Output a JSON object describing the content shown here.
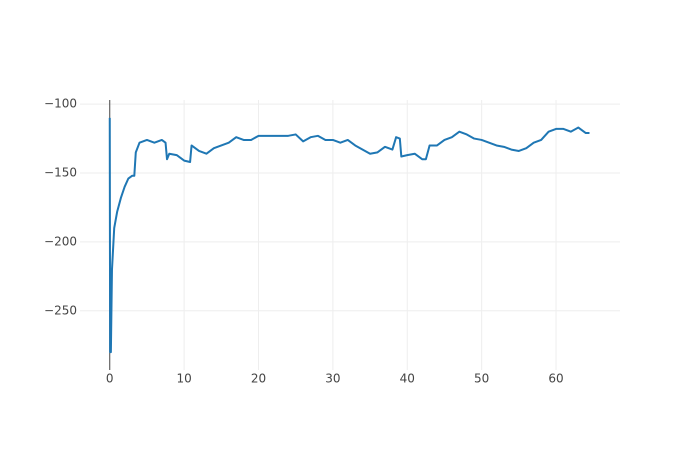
{
  "chart_data": {
    "type": "line",
    "x": [
      0,
      0.05,
      0.15,
      0.3,
      0.6,
      1,
      1.5,
      2,
      2.5,
      3,
      3.3,
      3.5,
      4,
      5,
      6,
      7,
      7.5,
      7.7,
      8,
      9,
      10,
      10.8,
      11,
      12,
      13,
      14,
      15,
      16,
      17,
      18,
      19,
      20,
      22,
      24,
      25,
      26,
      27,
      28,
      29,
      30,
      31,
      32,
      33,
      34,
      35,
      36,
      37,
      38,
      38.5,
      39,
      39.2,
      40,
      41,
      42,
      42.5,
      43,
      44,
      45,
      46,
      47,
      48,
      49,
      50,
      51,
      52,
      53,
      54,
      55,
      56,
      57,
      58,
      59,
      60,
      61,
      62,
      63,
      64,
      64.5
    ],
    "series": [
      {
        "color": "#1f77b4",
        "values": [
          -110,
          -280,
          -280,
          -220,
          -190,
          -178,
          -168,
          -160,
          -154,
          -152,
          -152,
          -135,
          -128,
          -126,
          -128,
          -126,
          -128,
          -140,
          -136,
          -137,
          -141,
          -142,
          -130,
          -134,
          -136,
          -132,
          -130,
          -128,
          -124,
          -126,
          -126,
          -123,
          -123,
          -123,
          -122,
          -127,
          -124,
          -123,
          -126,
          -126,
          -128,
          -126,
          -130,
          -133,
          -136,
          -135,
          -131,
          -133,
          -124,
          -125,
          -138,
          -137,
          -136,
          -140,
          -140,
          -130,
          -130,
          -126,
          -124,
          -120,
          -122,
          -125,
          -126,
          -128,
          -130,
          -131,
          -133,
          -134,
          -132,
          -128,
          -126,
          -120,
          -118,
          -118,
          -120,
          -117,
          -121,
          -121
        ]
      }
    ],
    "xlim": [
      -4,
      68.6
    ],
    "ylim": [
      -293,
      -97
    ],
    "xticks": [
      0,
      10,
      20,
      30,
      40,
      50,
      60
    ],
    "yticks": [
      {
        "value": -100,
        "label": "−100"
      },
      {
        "value": -150,
        "label": "−150"
      },
      {
        "value": -200,
        "label": "−200"
      },
      {
        "value": -250,
        "label": "−250"
      }
    ],
    "grid": true
  }
}
